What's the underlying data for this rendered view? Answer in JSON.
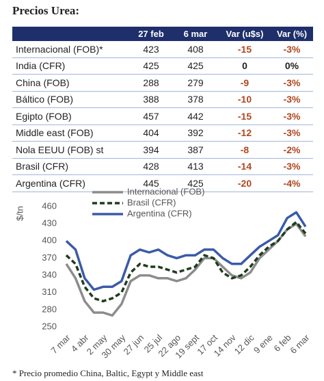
{
  "title": "Precios Urea:",
  "table": {
    "header": [
      "27 feb",
      "6 mar",
      "Var (u$s)",
      "Var (%)"
    ],
    "rows": [
      [
        "Internacional (FOB)*",
        "423",
        "408",
        "-15",
        "-3%"
      ],
      [
        "India (CFR)",
        "425",
        "425",
        "0",
        "0%"
      ],
      [
        "China (FOB)",
        "288",
        "279",
        "-9",
        "-3%"
      ],
      [
        "Báltico (FOB)",
        "388",
        "378",
        "-10",
        "-3%"
      ],
      [
        "Egipto (FOB)",
        "457",
        "442",
        "-15",
        "-3%"
      ],
      [
        "Middle east (FOB)",
        "404",
        "392",
        "-12",
        "-3%"
      ],
      [
        "Nola EEUU (FOB) st",
        "394",
        "387",
        "-8",
        "-2%"
      ],
      [
        "Brasil (CFR)",
        "428",
        "413",
        "-14",
        "-3%"
      ],
      [
        "Argentina (CFR)",
        "445",
        "425",
        "-20",
        "-4%"
      ]
    ]
  },
  "chart_data": {
    "type": "line",
    "ylabel": "$/tn",
    "categories": [
      "7 mar",
      null,
      "4 abr",
      null,
      "2 may",
      null,
      "30 may",
      null,
      "27 jun",
      null,
      "25 jul",
      null,
      "22 ago",
      null,
      "19 sept",
      null,
      "17 oct",
      null,
      "14 nov",
      null,
      "12 dic",
      null,
      "9 ene",
      null,
      "6 feb",
      null,
      "6 mar"
    ],
    "series": [
      {
        "name": "Internacional (FOB)",
        "color": "#8c8c8c",
        "line_style": "solid",
        "values": [
          360,
          335,
          295,
          275,
          275,
          270,
          290,
          330,
          340,
          340,
          335,
          335,
          330,
          335,
          350,
          370,
          370,
          355,
          340,
          335,
          345,
          370,
          385,
          400,
          420,
          430,
          408
        ]
      },
      {
        "name": "Brasil (CFR)",
        "color": "#1e3d1e",
        "line_style": "dashed",
        "values": [
          375,
          360,
          320,
          300,
          295,
          300,
          310,
          345,
          360,
          355,
          355,
          350,
          345,
          350,
          355,
          375,
          370,
          345,
          335,
          340,
          355,
          375,
          390,
          400,
          420,
          433,
          413
        ]
      },
      {
        "name": "Argentina (CFR)",
        "color": "#3a5ba8",
        "line_style": "solid",
        "values": [
          400,
          385,
          335,
          315,
          320,
          320,
          330,
          375,
          385,
          380,
          385,
          375,
          370,
          375,
          375,
          385,
          385,
          370,
          360,
          360,
          375,
          390,
          400,
          410,
          440,
          450,
          425
        ]
      }
    ],
    "ylim": [
      250,
      460
    ],
    "yticks": [
      250,
      280,
      310,
      340,
      370,
      400,
      430,
      460
    ],
    "grid": false,
    "legend": "top"
  },
  "footnote": "* Precio promedio China, Baltic, Egypt y Middle east"
}
